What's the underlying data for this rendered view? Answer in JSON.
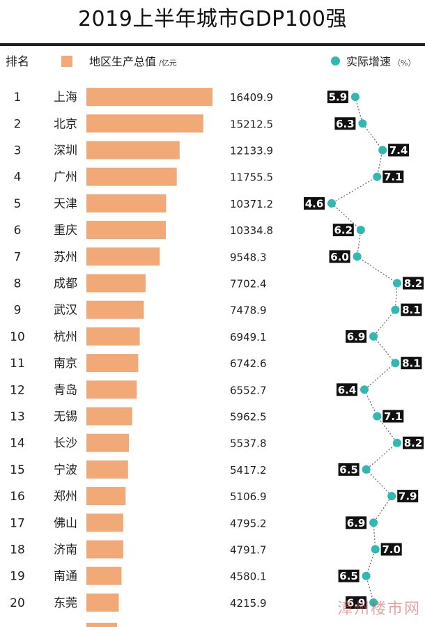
{
  "title": "2019上半年城市GDP100强",
  "header": {
    "rank_label": "排名",
    "gdp_label": "地区生产总值",
    "gdp_unit": "/亿元",
    "growth_label": "实际增速",
    "growth_unit": "（%）"
  },
  "colors": {
    "bar": "#f1a978",
    "dot": "#2fb9b1",
    "label_bg": "#111111",
    "connector": "#6a6a6a"
  },
  "watermark": "漳州楼市网",
  "chart_data": {
    "type": "bar",
    "title": "2019上半年城市GDP100强",
    "categories": [
      "上海",
      "北京",
      "深圳",
      "广州",
      "天津",
      "重庆",
      "苏州",
      "成都",
      "武汉",
      "杭州",
      "南京",
      "青岛",
      "无锡",
      "长沙",
      "宁波",
      "郑州",
      "佛山",
      "济南",
      "南通",
      "东莞"
    ],
    "ranks": [
      "1",
      "2",
      "3",
      "4",
      "5",
      "6",
      "7",
      "8",
      "9",
      "10",
      "11",
      "12",
      "13",
      "14",
      "15",
      "16",
      "17",
      "18",
      "19",
      "20"
    ],
    "series": [
      {
        "name": "地区生产总值",
        "unit": "/亿元",
        "values": [
          16409.9,
          15212.5,
          12133.9,
          11755.5,
          10371.2,
          10334.8,
          9548.3,
          7702.4,
          7478.9,
          6949.1,
          6742.6,
          6552.7,
          5962.5,
          5537.8,
          5417.2,
          5106.9,
          4795.2,
          4791.7,
          4580.1,
          4215.9
        ]
      },
      {
        "name": "实际增速",
        "unit": "（%）",
        "values": [
          5.9,
          6.3,
          7.4,
          7.1,
          4.6,
          6.2,
          6.0,
          8.2,
          8.1,
          6.9,
          8.1,
          6.4,
          7.1,
          8.2,
          6.5,
          7.9,
          6.9,
          7.0,
          6.5,
          6.9
        ]
      }
    ],
    "orientation": "horizontal",
    "legend": "top"
  }
}
